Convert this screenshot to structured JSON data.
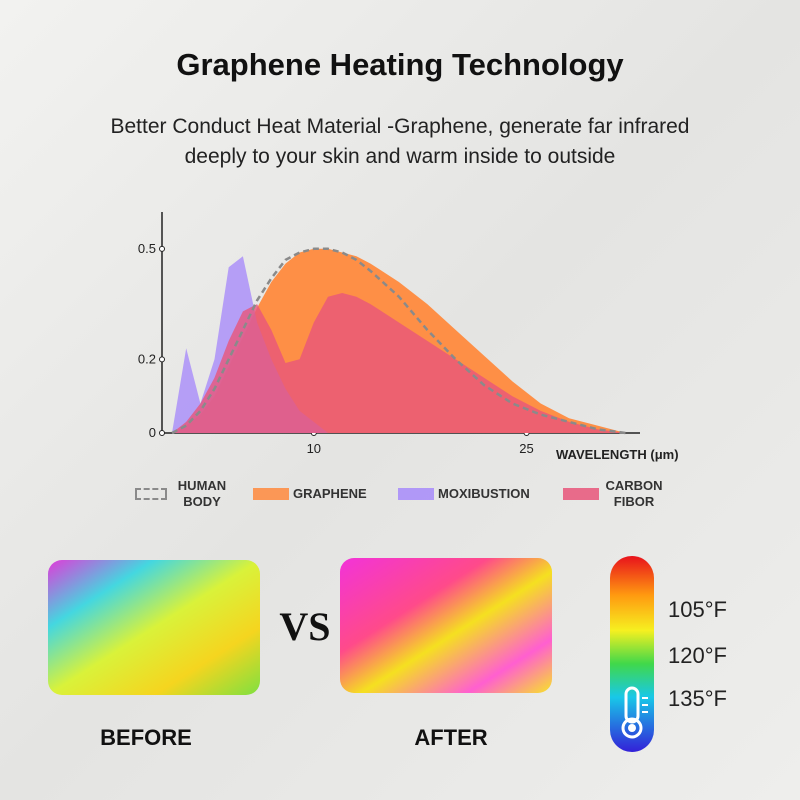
{
  "header": {
    "title": "Graphene Heating Technology",
    "subtitle": [
      "Better Conduct Heat Material -Graphene, generate far infrared",
      "deeply to your skin and warm inside to outside"
    ]
  },
  "chart_data": {
    "type": "area",
    "x_label": "WAVELENGTH (μm)",
    "x": [
      0,
      1,
      2,
      3,
      4,
      5,
      6,
      7,
      8,
      9,
      10,
      11,
      12,
      13,
      14,
      16,
      18,
      20,
      22,
      24,
      26,
      28,
      30,
      32
    ],
    "xlim": [
      0,
      33
    ],
    "ylim": [
      0,
      0.6
    ],
    "xticks": [
      10,
      25
    ],
    "yticks": [
      0,
      0.2,
      0.5
    ],
    "series": [
      {
        "name": "HUMAN BODY",
        "color": "#8a8a8a",
        "dashed": true,
        "values": [
          0,
          0.02,
          0.06,
          0.12,
          0.2,
          0.28,
          0.36,
          0.42,
          0.47,
          0.49,
          0.5,
          0.5,
          0.49,
          0.47,
          0.44,
          0.37,
          0.28,
          0.2,
          0.13,
          0.08,
          0.05,
          0.03,
          0.01,
          0
        ]
      },
      {
        "name": "GRAPHENE",
        "color": "#ff8a3d",
        "values": [
          0,
          0.02,
          0.05,
          0.1,
          0.18,
          0.26,
          0.34,
          0.41,
          0.46,
          0.49,
          0.5,
          0.5,
          0.49,
          0.48,
          0.46,
          0.41,
          0.35,
          0.28,
          0.21,
          0.14,
          0.08,
          0.04,
          0.02,
          0
        ]
      },
      {
        "name": "MOXIBUSTION",
        "color": "#a78bfa",
        "values": [
          0,
          0.23,
          0.08,
          0.2,
          0.45,
          0.48,
          0.3,
          0.2,
          0.12,
          0.06,
          0.03,
          0,
          0,
          0,
          0,
          0,
          0,
          0,
          0,
          0,
          0,
          0,
          0,
          0
        ]
      },
      {
        "name": "CARBON FIBOR",
        "color": "#e8557a",
        "values": [
          0,
          0.03,
          0.08,
          0.15,
          0.25,
          0.33,
          0.35,
          0.28,
          0.19,
          0.2,
          0.3,
          0.37,
          0.38,
          0.37,
          0.35,
          0.3,
          0.25,
          0.2,
          0.15,
          0.1,
          0.06,
          0.03,
          0.01,
          0
        ]
      }
    ]
  },
  "comparison": {
    "before": "BEFORE",
    "vs": "VS",
    "after": "AFTER"
  },
  "scale": {
    "labels": [
      "105°F",
      "120°F",
      "135°F"
    ]
  }
}
